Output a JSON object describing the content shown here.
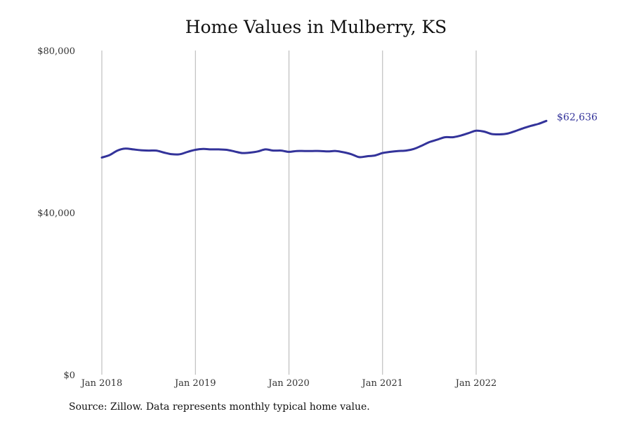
{
  "chart_data": {
    "type": "line",
    "title": "Home Values in Mulberry, KS",
    "source": "Source: Zillow. Data represents monthly typical home value.",
    "xlabel": "",
    "ylabel": "",
    "ylim": [
      0,
      80000
    ],
    "y_ticks": [
      {
        "value": 0,
        "label": "$0"
      },
      {
        "value": 40000,
        "label": "$40,000"
      },
      {
        "value": 80000,
        "label": "$80,000"
      }
    ],
    "x_ticks": [
      {
        "value": "2018-01",
        "label": "Jan 2018"
      },
      {
        "value": "2019-01",
        "label": "Jan 2019"
      },
      {
        "value": "2020-01",
        "label": "Jan 2020"
      },
      {
        "value": "2021-01",
        "label": "Jan 2021"
      },
      {
        "value": "2022-01",
        "label": "Jan 2022"
      }
    ],
    "grid": "vertical",
    "line_color": "#33339a",
    "end_label": "$62,636",
    "series": [
      {
        "x": [
          "2018-01",
          "2018-02",
          "2018-03",
          "2018-04",
          "2018-05",
          "2018-06",
          "2018-07",
          "2018-08",
          "2018-09",
          "2018-10",
          "2018-11",
          "2018-12",
          "2019-01",
          "2019-02",
          "2019-03",
          "2019-04",
          "2019-05",
          "2019-06",
          "2019-07",
          "2019-08",
          "2019-09",
          "2019-10",
          "2019-11",
          "2019-12",
          "2020-01",
          "2020-02",
          "2020-03",
          "2020-04",
          "2020-05",
          "2020-06",
          "2020-07",
          "2020-08",
          "2020-09",
          "2020-10",
          "2020-11",
          "2020-12",
          "2021-01",
          "2021-02",
          "2021-03",
          "2021-04",
          "2021-05",
          "2021-06",
          "2021-07",
          "2021-08",
          "2021-09",
          "2021-10",
          "2021-11",
          "2021-12",
          "2022-01",
          "2022-02",
          "2022-03",
          "2022-04",
          "2022-05",
          "2022-06",
          "2022-07",
          "2022-08",
          "2022-09",
          "2022-10"
        ],
        "values": [
          53600,
          54200,
          55300,
          55800,
          55600,
          55400,
          55300,
          55300,
          54800,
          54400,
          54400,
          55000,
          55500,
          55700,
          55600,
          55600,
          55500,
          55100,
          54700,
          54800,
          55100,
          55600,
          55300,
          55300,
          55000,
          55200,
          55200,
          55200,
          55200,
          55100,
          55200,
          54900,
          54400,
          53700,
          53900,
          54100,
          54700,
          55000,
          55200,
          55300,
          55700,
          56500,
          57400,
          58000,
          58600,
          58600,
          59000,
          59600,
          60200,
          60000,
          59400,
          59300,
          59500,
          60100,
          60800,
          61400,
          61900,
          62636
        ]
      }
    ]
  }
}
